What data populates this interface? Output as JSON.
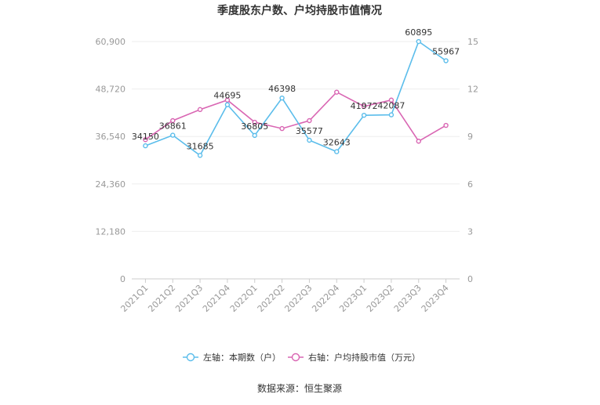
{
  "chart_data": {
    "type": "line",
    "title": "季度股东户数、户均持股市值情况",
    "categories": [
      "2021Q1",
      "2021Q2",
      "2021Q3",
      "2021Q4",
      "2022Q1",
      "2022Q2",
      "2022Q3",
      "2022Q4",
      "2023Q1",
      "2023Q2",
      "2023Q3",
      "2023Q4"
    ],
    "left_axis": {
      "ticks": [
        "0",
        "12,180",
        "24,360",
        "36,540",
        "48,720",
        "60,900"
      ],
      "ylim": [
        0,
        60900
      ]
    },
    "right_axis": {
      "ticks": [
        "0",
        "3",
        "6",
        "9",
        "12",
        "15"
      ],
      "ylim": [
        0,
        15
      ]
    },
    "series": [
      {
        "name": "左轴：本期数（户）",
        "axis": "left",
        "color": "#5bbdeb",
        "values": [
          34150,
          36861,
          31685,
          44695,
          36805,
          46398,
          35577,
          32643,
          41972,
          42087,
          60895,
          55967
        ],
        "labels": [
          "34150",
          "36861",
          "31685",
          "44695",
          "36805",
          "46398",
          "35577",
          "32643",
          "41972",
          "42087",
          "60895",
          "55967"
        ]
      },
      {
        "name": "右轴：户均持股市值（万元）",
        "axis": "right",
        "color": "#d966b3",
        "values": [
          8.8,
          10.0,
          10.7,
          11.3,
          9.9,
          9.5,
          10.0,
          11.8,
          10.9,
          11.3,
          8.7,
          9.7
        ]
      }
    ],
    "grid": true,
    "legend_position": "bottom"
  },
  "source": "数据来源：恒生聚源"
}
